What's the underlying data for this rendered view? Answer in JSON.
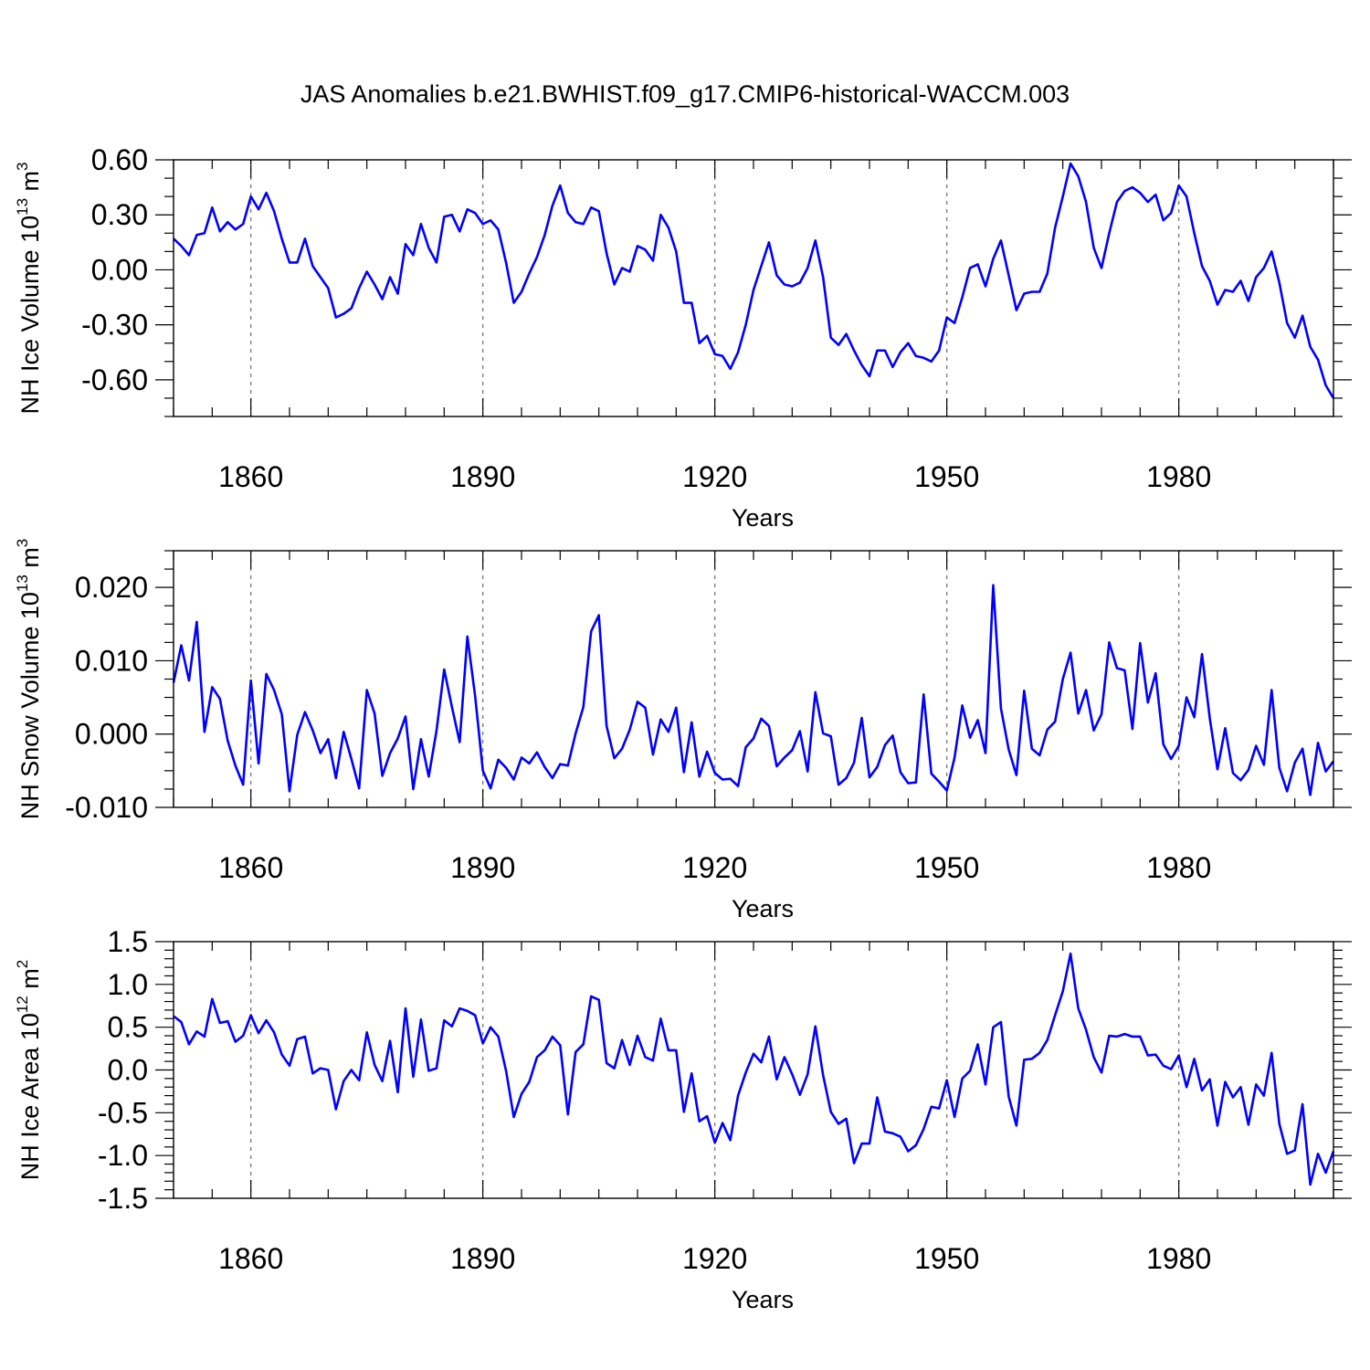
{
  "chart_data": {
    "title": "JAS Anomalies b.e21.BWHIST.f09_g17.CMIP6-historical-WACCM.003",
    "panels": [
      {
        "type": "line",
        "xlabel": "Years",
        "ylabel_main": "NH Ice Volume 10",
        "ylabel_exp": "13",
        "ylabel_unit": " m",
        "ylabel_unit_exp": "3",
        "xlim": [
          1850,
          2000
        ],
        "ylim": [
          -0.8,
          0.6
        ],
        "yticks": [
          0.6,
          0.3,
          0.0,
          -0.3,
          -0.6
        ],
        "ytick_labels": [
          "0.60",
          "0.30",
          "0.00",
          "-0.30",
          "-0.60"
        ],
        "yminor_step": 0.1,
        "xticks": [
          1860,
          1890,
          1920,
          1950,
          1980
        ],
        "xtick_labels": [
          "1860",
          "1890",
          "1920",
          "1950",
          "1980"
        ],
        "grid": true,
        "series": [
          {
            "name": "NH Ice Volume",
            "color": "#0000ff",
            "x_start": 1850,
            "x_step": 1,
            "values": [
              0.17,
              0.13,
              0.08,
              0.19,
              0.2,
              0.34,
              0.21,
              0.26,
              0.22,
              0.25,
              0.4,
              0.33,
              0.42,
              0.32,
              0.17,
              0.04,
              0.04,
              0.17,
              0.02,
              -0.04,
              -0.1,
              -0.26,
              -0.24,
              -0.21,
              -0.1,
              -0.01,
              -0.08,
              -0.16,
              -0.04,
              -0.13,
              0.14,
              0.08,
              0.25,
              0.12,
              0.04,
              0.29,
              0.3,
              0.21,
              0.33,
              0.31,
              0.25,
              0.27,
              0.22,
              0.04,
              -0.18,
              -0.12,
              -0.02,
              0.07,
              0.19,
              0.35,
              0.46,
              0.31,
              0.26,
              0.25,
              0.34,
              0.32,
              0.09,
              -0.08,
              0.01,
              -0.01,
              0.13,
              0.11,
              0.05,
              0.3,
              0.23,
              0.1,
              -0.18,
              -0.18,
              -0.4,
              -0.36,
              -0.46,
              -0.47,
              -0.54,
              -0.45,
              -0.3,
              -0.11,
              0.02,
              0.15,
              -0.03,
              -0.08,
              -0.09,
              -0.07,
              0.01,
              0.16,
              -0.04,
              -0.37,
              -0.41,
              -0.35,
              -0.44,
              -0.52,
              -0.58,
              -0.44,
              -0.44,
              -0.53,
              -0.45,
              -0.4,
              -0.47,
              -0.48,
              -0.5,
              -0.44,
              -0.26,
              -0.29,
              -0.15,
              0.01,
              0.03,
              -0.09,
              0.06,
              0.16,
              -0.03,
              -0.22,
              -0.13,
              -0.12,
              -0.12,
              -0.02,
              0.23,
              0.4,
              0.58,
              0.51,
              0.37,
              0.12,
              0.01,
              0.2,
              0.37,
              0.43,
              0.45,
              0.42,
              0.37,
              0.41,
              0.27,
              0.31,
              0.46,
              0.4,
              0.2,
              0.02,
              -0.06,
              -0.19,
              -0.11,
              -0.12,
              -0.06,
              -0.17,
              -0.04,
              0.01,
              0.1,
              -0.07,
              -0.29,
              -0.37,
              -0.25,
              -0.42,
              -0.49,
              -0.63,
              -0.7
            ]
          }
        ]
      },
      {
        "type": "line",
        "xlabel": "Years",
        "ylabel_main": "NH Snow Volume 10",
        "ylabel_exp": "13",
        "ylabel_unit": " m",
        "ylabel_unit_exp": "3",
        "xlim": [
          1850,
          2000
        ],
        "ylim": [
          -0.01,
          0.025
        ],
        "yticks": [
          0.02,
          0.01,
          0.0,
          -0.01
        ],
        "ytick_labels": [
          "0.020",
          "0.010",
          "0.000",
          "-0.010"
        ],
        "yminor_step": 0.0025,
        "xticks": [
          1860,
          1890,
          1920,
          1950,
          1980
        ],
        "xtick_labels": [
          "1860",
          "1890",
          "1920",
          "1950",
          "1980"
        ],
        "grid": true,
        "series": [
          {
            "name": "NH Snow Volume",
            "color": "#0000ff",
            "x_start": 1850,
            "x_step": 1,
            "values": [
              0.007,
              0.0121,
              0.0073,
              0.0153,
              0.0003,
              0.0064,
              0.0048,
              -0.0009,
              -0.0043,
              -0.0069,
              0.0073,
              -0.004,
              0.0082,
              0.006,
              0.0027,
              -0.0078,
              -0.0001,
              0.003,
              0.0005,
              -0.0026,
              -0.0007,
              -0.006,
              0.0003,
              -0.0034,
              -0.0074,
              0.006,
              0.0028,
              -0.0057,
              -0.0026,
              -0.0006,
              0.0024,
              -0.0075,
              -0.0007,
              -0.0058,
              0.0004,
              0.0088,
              0.0037,
              -0.0011,
              0.0133,
              0.0052,
              -0.005,
              -0.0074,
              -0.0035,
              -0.0046,
              -0.0062,
              -0.0032,
              -0.004,
              -0.0025,
              -0.0045,
              -0.006,
              -0.0041,
              -0.0043,
              0.0001,
              0.0037,
              0.014,
              0.0162,
              0.0011,
              -0.0033,
              -0.002,
              0.0006,
              0.0044,
              0.0036,
              -0.0028,
              0.002,
              0.0003,
              0.0036,
              -0.0052,
              0.0016,
              -0.0058,
              -0.0024,
              -0.0053,
              -0.0062,
              -0.0061,
              -0.0071,
              -0.0018,
              -0.0006,
              0.0021,
              0.0011,
              -0.0044,
              -0.0032,
              -0.0022,
              0.0004,
              -0.0051,
              0.0057,
              0.0001,
              -0.0003,
              -0.0069,
              -0.006,
              -0.0039,
              0.0022,
              -0.0059,
              -0.0045,
              -0.0015,
              -0.0002,
              -0.0052,
              -0.0067,
              -0.0066,
              0.0054,
              -0.0054,
              -0.0065,
              -0.0077,
              -0.0032,
              0.0039,
              -0.0005,
              0.0019,
              -0.0026,
              0.0203,
              0.0035,
              -0.0021,
              -0.0056,
              0.0059,
              -0.002,
              -0.0029,
              0.0006,
              0.0017,
              0.0075,
              0.0111,
              0.0028,
              0.006,
              0.0005,
              0.0027,
              0.0125,
              0.009,
              0.0087,
              0.0007,
              0.0124,
              0.0043,
              0.0083,
              -0.0014,
              -0.0034,
              -0.0016,
              0.005,
              0.0023,
              0.0109,
              0.0022,
              -0.0048,
              0.0008,
              -0.0053,
              -0.0063,
              -0.0049,
              -0.0016,
              -0.0042,
              0.006,
              -0.0046,
              -0.0078,
              -0.0039,
              -0.002,
              -0.0083,
              -0.0012,
              -0.0051,
              -0.0037
            ]
          }
        ]
      },
      {
        "type": "line",
        "xlabel": "Years",
        "ylabel_main": "NH Ice Area 10",
        "ylabel_exp": "12",
        "ylabel_unit": " m",
        "ylabel_unit_exp": "2",
        "xlim": [
          1850,
          2000
        ],
        "ylim": [
          -1.5,
          1.5
        ],
        "yticks": [
          1.5,
          1.0,
          0.5,
          0.0,
          -0.5,
          -1.0,
          -1.5
        ],
        "ytick_labels": [
          "1.5",
          "1.0",
          "0.5",
          "0.0",
          "-0.5",
          "-1.0",
          "-1.5"
        ],
        "yminor_step": 0.1,
        "xticks": [
          1860,
          1890,
          1920,
          1950,
          1980
        ],
        "xtick_labels": [
          "1860",
          "1890",
          "1920",
          "1950",
          "1980"
        ],
        "grid": true,
        "series": [
          {
            "name": "NH Ice Area",
            "color": "#0000ff",
            "x_start": 1850,
            "x_step": 1,
            "values": [
              0.63,
              0.56,
              0.3,
              0.45,
              0.39,
              0.83,
              0.55,
              0.57,
              0.33,
              0.4,
              0.64,
              0.43,
              0.58,
              0.44,
              0.18,
              0.05,
              0.36,
              0.39,
              -0.04,
              0.02,
              0.0,
              -0.46,
              -0.13,
              0.0,
              -0.12,
              0.44,
              0.06,
              -0.13,
              0.34,
              -0.26,
              0.72,
              -0.08,
              0.59,
              -0.01,
              0.02,
              0.58,
              0.51,
              0.72,
              0.69,
              0.64,
              0.31,
              0.5,
              0.39,
              -0.01,
              -0.55,
              -0.28,
              -0.14,
              0.15,
              0.23,
              0.39,
              0.29,
              -0.52,
              0.21,
              0.3,
              0.86,
              0.82,
              0.08,
              0.02,
              0.35,
              0.06,
              0.4,
              0.15,
              0.11,
              0.6,
              0.23,
              0.23,
              -0.49,
              -0.04,
              -0.6,
              -0.54,
              -0.85,
              -0.62,
              -0.82,
              -0.3,
              -0.03,
              0.19,
              0.09,
              0.39,
              -0.11,
              0.15,
              -0.05,
              -0.29,
              -0.05,
              0.51,
              -0.06,
              -0.49,
              -0.63,
              -0.57,
              -1.09,
              -0.86,
              -0.86,
              -0.32,
              -0.72,
              -0.74,
              -0.78,
              -0.95,
              -0.88,
              -0.69,
              -0.43,
              -0.45,
              -0.12,
              -0.55,
              -0.1,
              -0.01,
              0.3,
              -0.17,
              0.5,
              0.56,
              -0.31,
              -0.65,
              0.12,
              0.13,
              0.2,
              0.35,
              0.64,
              0.92,
              1.36,
              0.72,
              0.47,
              0.15,
              -0.03,
              0.4,
              0.39,
              0.42,
              0.39,
              0.39,
              0.17,
              0.18,
              0.05,
              0.01,
              0.17,
              -0.2,
              0.13,
              -0.24,
              -0.11,
              -0.65,
              -0.14,
              -0.32,
              -0.2,
              -0.64,
              -0.17,
              -0.3,
              0.2,
              -0.63,
              -0.98,
              -0.94,
              -0.4,
              -1.34,
              -0.98,
              -1.2,
              -0.95
            ]
          }
        ]
      }
    ]
  }
}
